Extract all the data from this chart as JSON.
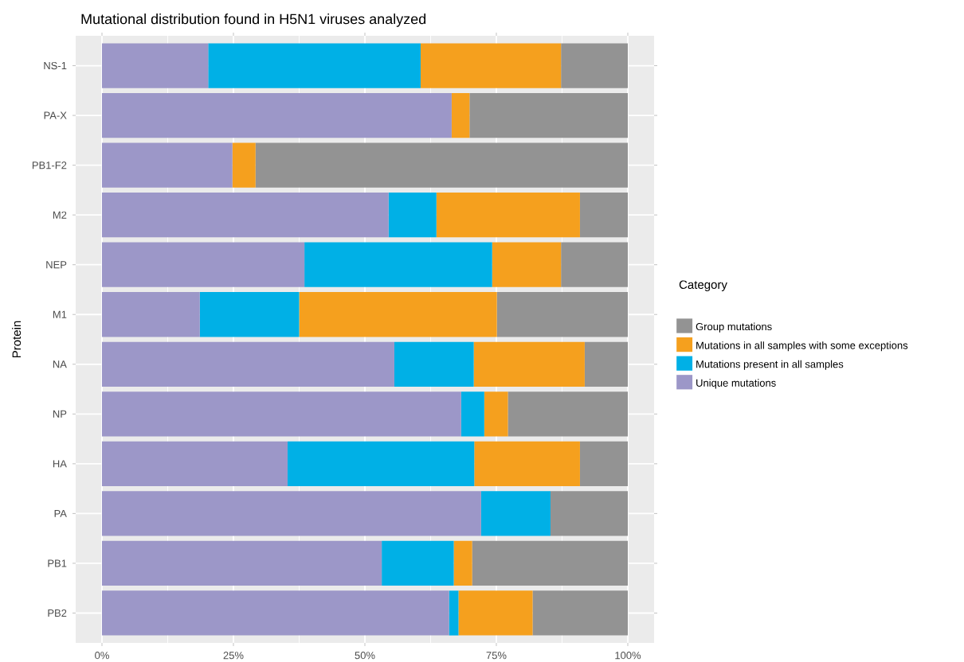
{
  "chart_data": {
    "type": "bar",
    "orientation": "horizontal",
    "stacked": true,
    "title": "Mutational distribution found in H5N1 viruses analyzed",
    "ylabel": "Protein",
    "legend_title": "Category",
    "legend": "right",
    "grid": true,
    "categories": [
      "NS-1",
      "PA-X",
      "PB1-F2",
      "M2",
      "NEP",
      "M1",
      "NA",
      "NP",
      "HA",
      "PA",
      "PB1",
      "PB2"
    ],
    "xlim": [
      -5,
      105
    ],
    "xticks": [
      {
        "value": 0,
        "label": "0%"
      },
      {
        "value": 25,
        "label": "25%"
      },
      {
        "value": 50,
        "label": "50%"
      },
      {
        "value": 75,
        "label": "75%"
      },
      {
        "value": 100,
        "label": "100%"
      }
    ],
    "series": [
      {
        "name": "Unique mutations",
        "color": "#9c97c8",
        "values": [
          20.2,
          66.5,
          24.8,
          54.5,
          38.5,
          18.6,
          55.6,
          68.3,
          35.3,
          72.1,
          53.2,
          66.0
        ]
      },
      {
        "name": "Mutations present in all samples",
        "color": "#00b0e6",
        "values": [
          40.4,
          0,
          0,
          9.1,
          35.7,
          18.9,
          15.1,
          4.4,
          35.5,
          13.2,
          13.7,
          1.8
        ]
      },
      {
        "name": "Mutations in all samples with some exceptions",
        "color": "#f5a01e",
        "values": [
          26.7,
          3.4,
          4.4,
          27.3,
          13.1,
          37.6,
          21.1,
          4.5,
          20.1,
          0,
          3.5,
          14.1
        ]
      },
      {
        "name": "Group mutations",
        "color": "#939393",
        "values": [
          12.7,
          30.1,
          70.8,
          9.1,
          12.7,
          24.9,
          8.2,
          22.8,
          9.1,
          14.7,
          29.6,
          18.1
        ]
      }
    ]
  }
}
